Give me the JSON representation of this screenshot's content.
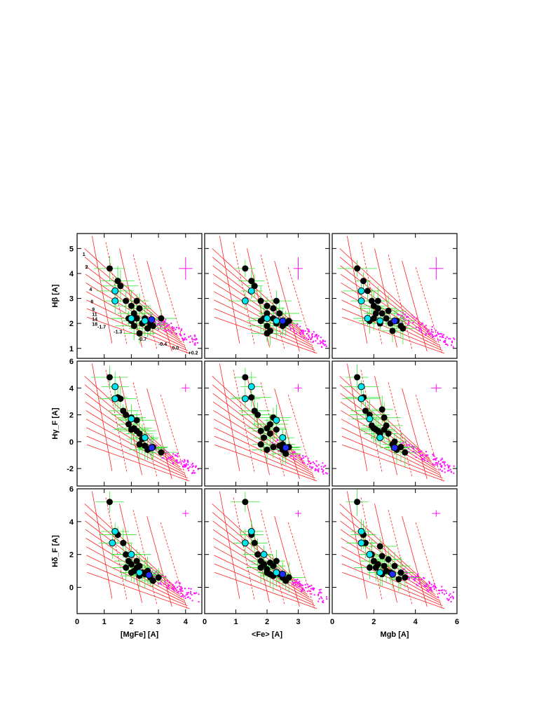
{
  "chart_data": {
    "type": "scatter",
    "layout": "3x3 grid",
    "grid": false,
    "columns": [
      {
        "xlabel": "[MgFe] [A]",
        "xlim": [
          0,
          4.6
        ],
        "xticks": [
          "0",
          "1",
          "2",
          "3",
          "4"
        ]
      },
      {
        "xlabel": "<Fe> [A]",
        "xlim": [
          0,
          4.0
        ],
        "xticks": [
          "0",
          "1",
          "2",
          "3"
        ]
      },
      {
        "xlabel": "Mgb [A]",
        "xlim": [
          0,
          6.0
        ],
        "xticks": [
          "0",
          "2",
          "4",
          "6"
        ]
      }
    ],
    "rows": [
      {
        "ylabel": "Hβ [A]",
        "ylim": [
          0.6,
          5.6
        ],
        "yticks": [
          "1",
          "2",
          "3",
          "4",
          "5"
        ]
      },
      {
        "ylabel": "Hγ_F [A]",
        "ylim": [
          -3.3,
          6.0
        ],
        "yticks": [
          "-2",
          "0",
          "2",
          "4",
          "6"
        ]
      },
      {
        "ylabel": "Hδ_F [A]",
        "ylim": [
          -1.6,
          6.0
        ],
        "yticks": [
          "0",
          "2",
          "4",
          "6"
        ]
      }
    ],
    "series_colors": {
      "black_points": "#000000",
      "cyan_points": "#00e5ee",
      "blue_points": "#1f2cff",
      "error_bars": "#2ee82e",
      "model_grid": "#ff2020",
      "magenta_points": "#ff10ff"
    },
    "panels": [
      {
        "row": 0,
        "col": 0,
        "black": [
          [
            1.2,
            4.2
          ],
          [
            1.5,
            3.7
          ],
          [
            1.6,
            3.5
          ],
          [
            1.8,
            2.9
          ],
          [
            2.0,
            2.7
          ],
          [
            2.2,
            2.9
          ],
          [
            2.3,
            2.6
          ],
          [
            2.1,
            2.4
          ],
          [
            2.2,
            2.2
          ],
          [
            2.0,
            2.1
          ],
          [
            1.9,
            2.2
          ],
          [
            2.1,
            1.9
          ],
          [
            2.4,
            2.0
          ],
          [
            2.5,
            2.2
          ],
          [
            2.7,
            2.0
          ],
          [
            2.6,
            1.8
          ],
          [
            2.3,
            1.6
          ],
          [
            2.8,
            1.9
          ],
          [
            3.1,
            2.2
          ]
        ],
        "cyan": [
          [
            1.4,
            3.3
          ],
          [
            1.4,
            2.9
          ],
          [
            2.0,
            2.2
          ],
          [
            2.5,
            2.1
          ]
        ],
        "blue": [
          [
            2.75,
            2.15
          ]
        ],
        "error_box": {
          "x": 4.0,
          "y": 4.2,
          "dx": 0.25,
          "dy": 0.45
        },
        "grid_labels": [
          {
            "text": "1",
            "x": 0.2,
            "y": 4.7
          },
          {
            "text": "2",
            "x": 0.3,
            "y": 4.2
          },
          {
            "text": "4",
            "x": 0.45,
            "y": 3.3
          },
          {
            "text": "6",
            "x": 0.5,
            "y": 2.8
          },
          {
            "text": "9",
            "x": 0.55,
            "y": 2.5
          },
          {
            "text": "11",
            "x": 0.55,
            "y": 2.3
          },
          {
            "text": "14",
            "x": 0.55,
            "y": 2.1
          },
          {
            "text": "18",
            "x": 0.55,
            "y": 1.9
          },
          {
            "text": "-1.7",
            "x": 0.75,
            "y": 1.8
          },
          {
            "text": "-1.3",
            "x": 1.35,
            "y": 1.6
          },
          {
            "text": "-0.7",
            "x": 2.25,
            "y": 1.3
          },
          {
            "text": "-0.4",
            "x": 3.0,
            "y": 1.1
          },
          {
            "text": "0.0",
            "x": 3.5,
            "y": 0.95
          },
          {
            "text": "+0.2",
            "x": 4.1,
            "y": 0.75
          }
        ]
      },
      {
        "row": 0,
        "col": 1,
        "black": [
          [
            1.3,
            4.2
          ],
          [
            1.5,
            3.7
          ],
          [
            1.6,
            3.5
          ],
          [
            1.8,
            2.9
          ],
          [
            2.0,
            2.7
          ],
          [
            2.3,
            2.9
          ],
          [
            2.2,
            2.6
          ],
          [
            2.0,
            2.4
          ],
          [
            2.2,
            2.2
          ],
          [
            1.8,
            2.1
          ],
          [
            1.9,
            2.2
          ],
          [
            2.0,
            1.9
          ],
          [
            2.3,
            2.0
          ],
          [
            2.4,
            2.4
          ],
          [
            2.6,
            2.0
          ],
          [
            2.5,
            1.9
          ],
          [
            2.1,
            1.7
          ],
          [
            2.7,
            2.1
          ],
          [
            2.0,
            1.6
          ]
        ],
        "cyan": [
          [
            1.5,
            3.3
          ],
          [
            1.3,
            2.9
          ],
          [
            2.0,
            2.2
          ],
          [
            2.3,
            2.1
          ]
        ],
        "blue": [
          [
            2.5,
            2.1
          ]
        ],
        "error_box": {
          "x": 3.0,
          "y": 4.2,
          "dx": 0.15,
          "dy": 0.45
        }
      },
      {
        "row": 0,
        "col": 2,
        "black": [
          [
            1.2,
            4.2
          ],
          [
            1.5,
            3.7
          ],
          [
            1.7,
            3.3
          ],
          [
            1.9,
            2.9
          ],
          [
            2.0,
            2.7
          ],
          [
            2.2,
            2.9
          ],
          [
            2.2,
            2.6
          ],
          [
            2.1,
            2.4
          ],
          [
            2.4,
            2.4
          ],
          [
            1.8,
            2.1
          ],
          [
            2.0,
            2.2
          ],
          [
            2.3,
            2.0
          ],
          [
            2.6,
            2.2
          ],
          [
            2.8,
            2.0
          ],
          [
            3.1,
            2.1
          ],
          [
            3.3,
            1.9
          ],
          [
            2.9,
            1.7
          ],
          [
            3.4,
            1.8
          ],
          [
            2.7,
            2.5
          ]
        ],
        "cyan": [
          [
            1.4,
            3.3
          ],
          [
            1.4,
            2.9
          ],
          [
            1.7,
            2.2
          ],
          [
            2.3,
            2.1
          ]
        ],
        "blue": [
          [
            3.0,
            2.1
          ]
        ],
        "error_box": {
          "x": 5.0,
          "y": 4.2,
          "dx": 0.35,
          "dy": 0.45
        }
      },
      {
        "row": 1,
        "col": 0,
        "black": [
          [
            1.2,
            4.8
          ],
          [
            1.5,
            3.3
          ],
          [
            1.7,
            2.3
          ],
          [
            1.8,
            2.0
          ],
          [
            1.9,
            1.3
          ],
          [
            2.0,
            1.8
          ],
          [
            2.1,
            1.0
          ],
          [
            2.2,
            0.8
          ],
          [
            2.3,
            0.6
          ],
          [
            2.4,
            0.2
          ],
          [
            2.3,
            -0.2
          ],
          [
            2.5,
            -0.3
          ],
          [
            2.7,
            -0.5
          ],
          [
            2.8,
            -0.4
          ],
          [
            3.1,
            -0.8
          ],
          [
            2.6,
            -0.6
          ],
          [
            2.0,
            0.9
          ],
          [
            1.6,
            3.2
          ],
          [
            2.2,
            1.6
          ]
        ],
        "cyan": [
          [
            1.4,
            4.1
          ],
          [
            1.4,
            3.2
          ],
          [
            2.0,
            1.7
          ],
          [
            2.5,
            0.3
          ]
        ],
        "blue": [
          [
            2.75,
            -0.45
          ]
        ],
        "error_box": {
          "x": 4.0,
          "y": 4.0,
          "dx": 0.15,
          "dy": 0.3
        }
      },
      {
        "row": 1,
        "col": 1,
        "black": [
          [
            1.3,
            4.8
          ],
          [
            1.5,
            3.3
          ],
          [
            1.6,
            2.3
          ],
          [
            1.7,
            2.0
          ],
          [
            1.8,
            0.8
          ],
          [
            2.0,
            1.0
          ],
          [
            2.1,
            0.6
          ],
          [
            1.9,
            0.3
          ],
          [
            2.3,
            0.9
          ],
          [
            2.2,
            -0.4
          ],
          [
            2.4,
            -0.3
          ],
          [
            2.5,
            -0.2
          ],
          [
            2.5,
            -0.6
          ],
          [
            2.7,
            -0.4
          ],
          [
            2.1,
            1.3
          ],
          [
            1.8,
            -0.2
          ],
          [
            2.0,
            -0.6
          ],
          [
            2.2,
            1.8
          ],
          [
            2.6,
            -0.9
          ]
        ],
        "cyan": [
          [
            1.5,
            4.1
          ],
          [
            1.3,
            3.2
          ],
          [
            2.3,
            1.6
          ],
          [
            2.5,
            0.3
          ]
        ],
        "blue": [
          [
            2.6,
            -0.45
          ]
        ],
        "error_box": {
          "x": 3.0,
          "y": 4.0,
          "dx": 0.12,
          "dy": 0.3
        }
      },
      {
        "row": 1,
        "col": 2,
        "black": [
          [
            1.2,
            4.8
          ],
          [
            1.5,
            3.3
          ],
          [
            1.6,
            2.3
          ],
          [
            1.8,
            2.0
          ],
          [
            2.0,
            1.0
          ],
          [
            2.2,
            0.8
          ],
          [
            2.3,
            0.6
          ],
          [
            2.1,
            0.9
          ],
          [
            2.4,
            2.4
          ],
          [
            2.5,
            1.8
          ],
          [
            2.6,
            1.2
          ],
          [
            2.7,
            0.6
          ],
          [
            3.0,
            0.0
          ],
          [
            3.3,
            -0.4
          ],
          [
            2.9,
            -0.2
          ],
          [
            3.5,
            -0.8
          ],
          [
            3.1,
            -0.6
          ],
          [
            2.5,
            0.9
          ],
          [
            1.9,
            1.2
          ]
        ],
        "cyan": [
          [
            1.4,
            4.1
          ],
          [
            1.4,
            3.2
          ],
          [
            1.8,
            1.7
          ],
          [
            2.3,
            0.3
          ]
        ],
        "blue": [
          [
            3.0,
            -0.45
          ]
        ],
        "error_box": {
          "x": 5.0,
          "y": 4.0,
          "dx": 0.25,
          "dy": 0.3
        }
      },
      {
        "row": 2,
        "col": 0,
        "black": [
          [
            1.2,
            5.2
          ],
          [
            1.5,
            3.2
          ],
          [
            1.7,
            2.7
          ],
          [
            1.8,
            2.0
          ],
          [
            1.9,
            1.6
          ],
          [
            2.0,
            1.4
          ],
          [
            2.1,
            1.0
          ],
          [
            2.2,
            1.2
          ],
          [
            2.3,
            1.3
          ],
          [
            2.4,
            0.9
          ],
          [
            2.3,
            0.7
          ],
          [
            2.5,
            0.8
          ],
          [
            2.7,
            0.6
          ],
          [
            2.8,
            0.4
          ],
          [
            3.0,
            0.6
          ],
          [
            2.2,
            1.6
          ],
          [
            1.8,
            1.2
          ],
          [
            2.6,
            1.0
          ],
          [
            2.0,
            0.9
          ]
        ],
        "cyan": [
          [
            1.4,
            3.4
          ],
          [
            1.3,
            2.7
          ],
          [
            2.0,
            2.0
          ],
          [
            2.3,
            0.9
          ]
        ],
        "blue": [
          [
            2.65,
            0.75
          ]
        ],
        "error_box": {
          "x": 4.0,
          "y": 4.5,
          "dx": 0.12,
          "dy": 0.2
        }
      },
      {
        "row": 2,
        "col": 1,
        "black": [
          [
            1.3,
            5.2
          ],
          [
            1.5,
            3.2
          ],
          [
            1.6,
            2.7
          ],
          [
            1.7,
            2.0
          ],
          [
            1.8,
            1.6
          ],
          [
            1.9,
            1.4
          ],
          [
            2.0,
            1.1
          ],
          [
            2.1,
            1.5
          ],
          [
            2.2,
            1.3
          ],
          [
            2.3,
            0.9
          ],
          [
            2.2,
            0.7
          ],
          [
            2.4,
            0.8
          ],
          [
            2.5,
            0.6
          ],
          [
            2.6,
            0.4
          ],
          [
            2.7,
            0.6
          ],
          [
            2.3,
            1.6
          ],
          [
            1.8,
            1.2
          ],
          [
            2.0,
            0.9
          ],
          [
            2.1,
            0.8
          ]
        ],
        "cyan": [
          [
            1.5,
            3.4
          ],
          [
            1.3,
            2.7
          ],
          [
            1.9,
            2.0
          ],
          [
            2.3,
            0.9
          ]
        ],
        "blue": [
          [
            2.5,
            0.8
          ]
        ],
        "error_box": {
          "x": 3.0,
          "y": 4.5,
          "dx": 0.1,
          "dy": 0.2
        }
      },
      {
        "row": 2,
        "col": 2,
        "black": [
          [
            1.2,
            5.2
          ],
          [
            1.5,
            3.2
          ],
          [
            1.6,
            2.7
          ],
          [
            1.9,
            2.0
          ],
          [
            2.0,
            1.6
          ],
          [
            2.2,
            1.4
          ],
          [
            2.3,
            2.5
          ],
          [
            2.4,
            1.9
          ],
          [
            2.5,
            1.3
          ],
          [
            2.6,
            1.0
          ],
          [
            2.8,
            0.9
          ],
          [
            3.0,
            1.3
          ],
          [
            3.3,
            0.9
          ],
          [
            3.5,
            0.6
          ],
          [
            3.2,
            0.5
          ],
          [
            2.1,
            1.2
          ],
          [
            1.8,
            1.2
          ],
          [
            2.4,
            0.8
          ],
          [
            2.7,
            1.7
          ]
        ],
        "cyan": [
          [
            1.4,
            3.4
          ],
          [
            1.4,
            2.7
          ],
          [
            1.8,
            2.0
          ],
          [
            2.3,
            0.9
          ]
        ],
        "blue": [
          [
            2.9,
            0.8
          ]
        ],
        "error_box": {
          "x": 5.0,
          "y": 4.5,
          "dx": 0.2,
          "dy": 0.2
        }
      }
    ]
  }
}
